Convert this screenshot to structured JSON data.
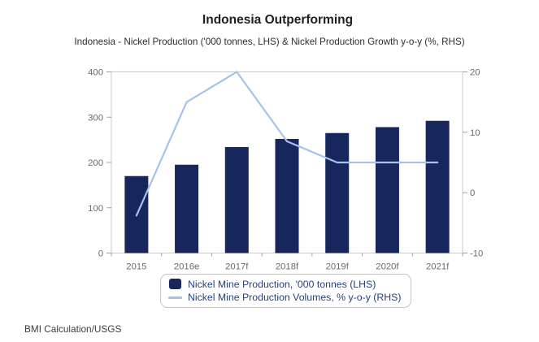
{
  "header": {
    "title": "Indonesia Outperforming",
    "subtitle": "Indonesia - Nickel Production ('000 tonnes, LHS) & Nickel Production Growth y-o-y (%, RHS)"
  },
  "source": "BMI Calculation/USGS",
  "colors": {
    "bar": "#17265c",
    "line": "#a5c3ea",
    "legend_text": "#24427c",
    "legend_border": "#c6c6c6",
    "axis_line": "#c5cbd6",
    "tick": "#9aa0ab",
    "axis_label": "#6a6a6a",
    "title_text": "#1f1f1f",
    "subtitle_text": "#2e2e2e",
    "source_text": "#3d3d3d"
  },
  "chart_data": {
    "type": "bar",
    "subtype": "bar-and-line-combo",
    "categories": [
      "2015",
      "2016e",
      "2017f",
      "2018f",
      "2019f",
      "2020f",
      "2021f"
    ],
    "series": [
      {
        "name": "Nickel Mine Production, '000 tonnes (LHS)",
        "type": "bar",
        "axis": "left",
        "values": [
          170,
          195,
          234,
          252,
          265,
          278,
          292
        ]
      },
      {
        "name": "Nickel Mine Production Volumes, % y-o-y (RHS)",
        "type": "line",
        "axis": "right",
        "values": [
          -3.8,
          15,
          20,
          8.5,
          5,
          5,
          5
        ]
      }
    ],
    "left_axis": {
      "min": 0,
      "max": 400,
      "ticks": [
        0,
        100,
        200,
        300,
        400
      ]
    },
    "right_axis": {
      "min": -10,
      "max": 20,
      "ticks": [
        -10,
        0,
        10,
        20
      ]
    },
    "grid": "off",
    "legend_position": "bottom"
  }
}
